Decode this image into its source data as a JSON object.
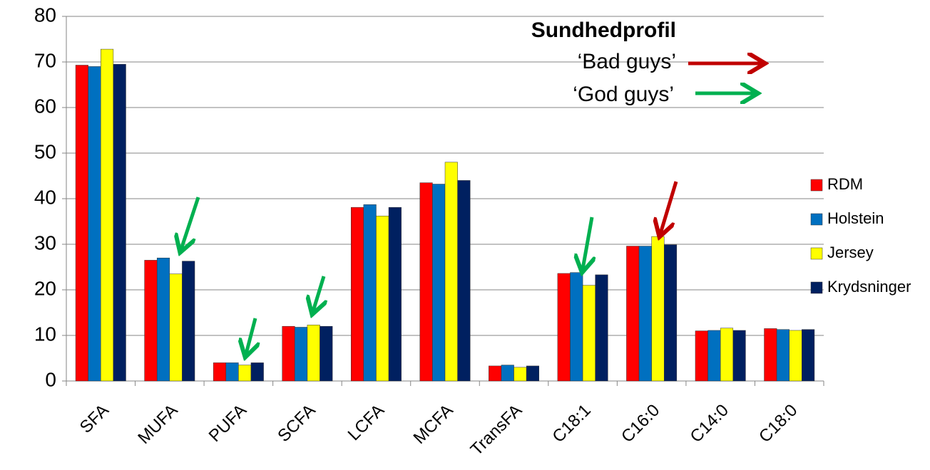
{
  "chart_data": {
    "type": "bar",
    "title": "Sundhedprofil",
    "annotations": [
      "‘Bad guys’",
      "‘God guys’"
    ],
    "categories": [
      "SFA",
      "MUFA",
      "PUFA",
      "SCFA",
      "LCFA",
      "MCFA",
      "TransFA",
      "C18:1",
      "C16:0",
      "C14:0",
      "C18:0"
    ],
    "series": [
      {
        "name": "RDM",
        "color": "#ff0000",
        "values": [
          69.3,
          26.5,
          4,
          12,
          38.1,
          43.5,
          3.3,
          23.6,
          29.6,
          11,
          11.5
        ]
      },
      {
        "name": "Holstein",
        "color": "#0070c0",
        "values": [
          69,
          27,
          4,
          11.8,
          38.7,
          43.2,
          3.5,
          23.8,
          29.6,
          11.1,
          11.3
        ]
      },
      {
        "name": "Jersey",
        "color": "#ffff00",
        "values": [
          72.8,
          23.5,
          3.5,
          12.3,
          36.2,
          48,
          3,
          21,
          31.7,
          11.6,
          11.1
        ]
      },
      {
        "name": "Krydsninger",
        "color": "#002060",
        "values": [
          69.5,
          26.3,
          4,
          12,
          38.1,
          44,
          3.3,
          23.3,
          29.9,
          11.1,
          11.3
        ]
      }
    ],
    "ylim": [
      0,
      80
    ],
    "yticks": [
      0,
      10,
      20,
      30,
      40,
      50,
      60,
      70,
      80
    ],
    "grid": true,
    "legend": "right"
  }
}
